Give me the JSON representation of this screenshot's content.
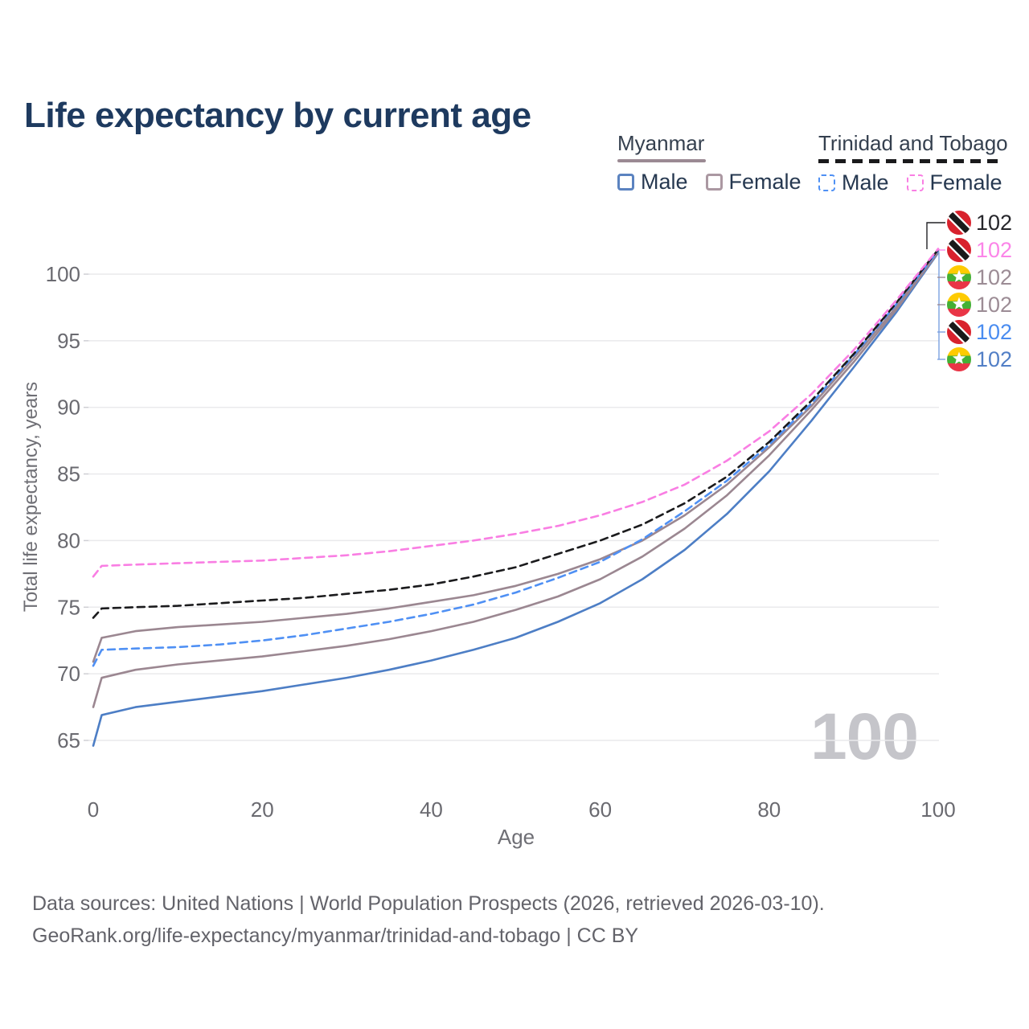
{
  "page": {
    "title": "Life expectancy by current age",
    "watermark": "100"
  },
  "legend": {
    "groups": [
      {
        "label": "Myanmar",
        "line_style": "solid",
        "underline_color": "#9b8a93",
        "items": [
          {
            "label": "Male",
            "color": "#5b83c0"
          },
          {
            "label": "Female",
            "color": "#ab98a2"
          }
        ]
      },
      {
        "label": "Trinidad and Tobago",
        "line_style": "dashed",
        "underline_color": "#1a1a1c",
        "items": [
          {
            "label": "Male",
            "color": "#4f90f4"
          },
          {
            "label": "Female",
            "color": "#f97ee3"
          }
        ]
      }
    ]
  },
  "footer": {
    "lines": [
      "Data sources: United Nations | World Population Prospects (2026, retrieved 2026-03-10).",
      "GeoRank.org/life-expectancy/myanmar/trinidad-and-tobago | CC BY"
    ]
  },
  "chart_data": {
    "type": "line",
    "title": "Life expectancy by current age",
    "xlabel": "Age",
    "ylabel": "Total life expectancy, years",
    "xlim": [
      0,
      100
    ],
    "ylim": [
      63,
      103
    ],
    "x_ticks": [
      0,
      20,
      40,
      60,
      80,
      100
    ],
    "y_ticks": [
      65,
      70,
      75,
      80,
      85,
      90,
      95,
      100
    ],
    "grid": "horizontal",
    "hover_age_watermark": "100",
    "x": [
      0,
      1,
      5,
      10,
      15,
      20,
      25,
      30,
      35,
      40,
      45,
      50,
      55,
      60,
      65,
      70,
      75,
      80,
      85,
      90,
      95,
      100
    ],
    "series": [
      {
        "id": "myanmar-male",
        "name": "Myanmar - Male",
        "color": "#4d7ec5",
        "dash": false,
        "values": [
          64.6,
          66.9,
          67.5,
          67.9,
          68.3,
          68.7,
          69.2,
          69.7,
          70.3,
          71.0,
          71.8,
          72.7,
          73.9,
          75.3,
          77.1,
          79.3,
          82.0,
          85.2,
          89.0,
          93.0,
          97.1,
          101.6
        ]
      },
      {
        "id": "myanmar-all",
        "name": "Myanmar - Both sexes",
        "color": "#9b8791",
        "dash": false,
        "values": [
          67.5,
          69.7,
          70.3,
          70.7,
          71.0,
          71.3,
          71.7,
          72.1,
          72.6,
          73.2,
          73.9,
          74.8,
          75.8,
          77.1,
          78.8,
          80.9,
          83.4,
          86.4,
          89.8,
          93.4,
          97.3,
          101.65
        ]
      },
      {
        "id": "myanmar-female",
        "name": "Myanmar - Female",
        "color": "#9b8791",
        "dash": false,
        "values": [
          70.9,
          72.7,
          73.2,
          73.5,
          73.7,
          73.9,
          74.2,
          74.5,
          74.9,
          75.4,
          75.9,
          76.6,
          77.5,
          78.6,
          80.0,
          81.9,
          84.2,
          87.0,
          90.1,
          93.7,
          97.5,
          101.7
        ]
      },
      {
        "id": "tt-male",
        "name": "Trinidad and Tobago - Male",
        "color": "#4f90f4",
        "dash": true,
        "values": [
          70.6,
          71.8,
          71.9,
          72.0,
          72.2,
          72.5,
          72.9,
          73.4,
          73.9,
          74.5,
          75.2,
          76.1,
          77.2,
          78.4,
          80.1,
          82.2,
          84.5,
          87.2,
          90.3,
          93.9,
          97.7,
          101.75
        ]
      },
      {
        "id": "tt-all",
        "name": "Trinidad and Tobago - Both sexes",
        "color": "#1b1b1d",
        "dash": true,
        "values": [
          74.2,
          74.9,
          75.0,
          75.1,
          75.3,
          75.5,
          75.7,
          76.0,
          76.3,
          76.7,
          77.3,
          78.0,
          79.0,
          80.0,
          81.2,
          82.8,
          84.8,
          87.4,
          90.5,
          94.0,
          97.8,
          101.85
        ]
      },
      {
        "id": "tt-female",
        "name": "Trinidad and Tobago - Female",
        "color": "#f97ee3",
        "dash": true,
        "values": [
          77.3,
          78.1,
          78.2,
          78.3,
          78.4,
          78.5,
          78.7,
          78.9,
          79.2,
          79.6,
          80.0,
          80.5,
          81.1,
          81.9,
          82.9,
          84.2,
          86.0,
          88.2,
          91.0,
          94.3,
          98.0,
          101.9
        ]
      }
    ],
    "end_labels": [
      {
        "flag": "trinidad-and-tobago",
        "series": "Trinidad and Tobago - Both sexes",
        "label": "102",
        "color": "#26262b"
      },
      {
        "flag": "trinidad-and-tobago",
        "series": "Trinidad and Tobago - Female",
        "label": "102",
        "color": "#fb85e8"
      },
      {
        "flag": "myanmar",
        "series": "Myanmar - Female",
        "label": "102",
        "color": "#9c8c95"
      },
      {
        "flag": "myanmar",
        "series": "Myanmar - Both sexes",
        "label": "102",
        "color": "#9c8c95"
      },
      {
        "flag": "trinidad-and-tobago",
        "series": "Trinidad and Tobago - Male",
        "label": "102",
        "color": "#4a8cf0"
      },
      {
        "flag": "myanmar",
        "series": "Myanmar - Male",
        "label": "102",
        "color": "#527fc6"
      }
    ],
    "flag_colors": {
      "trinidad_red": "#d8222d",
      "trinidad_black": "#1a1a1a",
      "trinidad_white": "#ffffff",
      "myanmar_yellow": "#fecb02",
      "myanmar_green": "#44b035",
      "myanmar_red": "#e93546",
      "myanmar_white": "#ffffff"
    }
  }
}
